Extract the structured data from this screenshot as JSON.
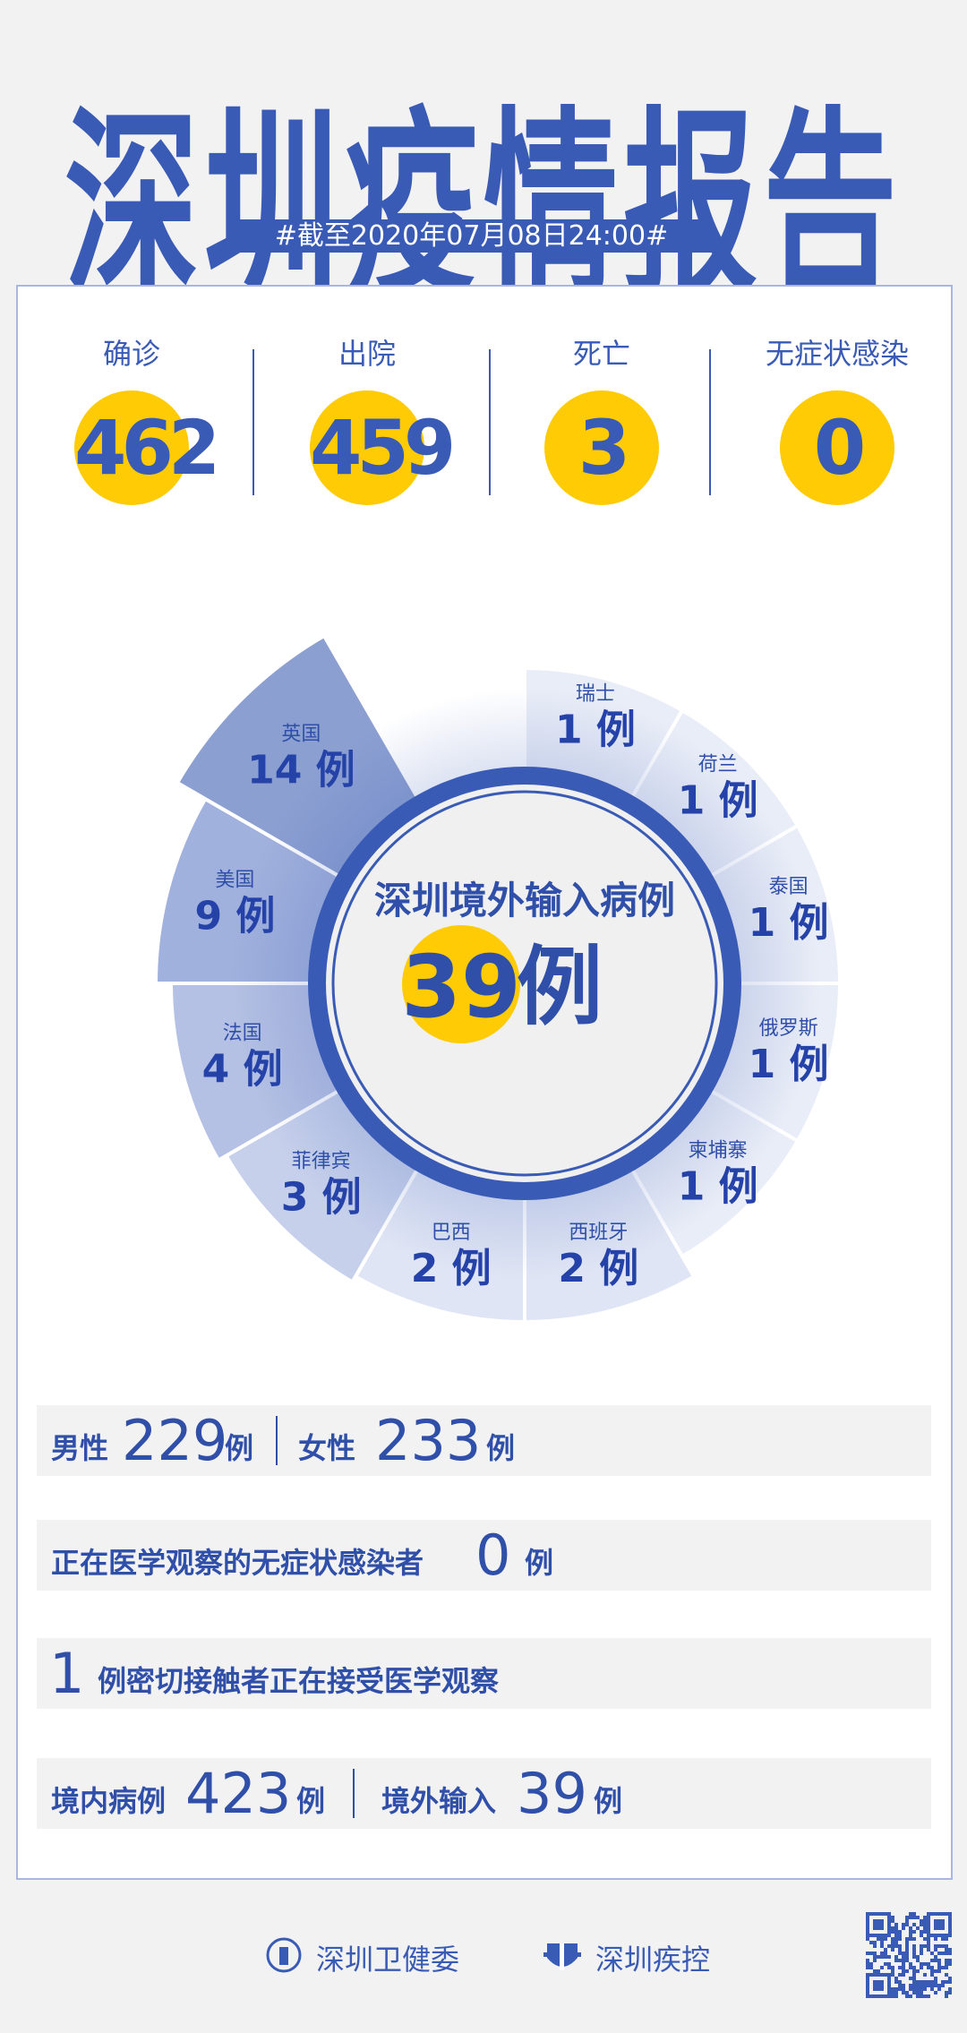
{
  "header": {
    "title": "深圳疫情报告",
    "date": "#截至2020年07月08日24:00#"
  },
  "stats": [
    {
      "label": "确诊",
      "value": "462"
    },
    {
      "label": "出院",
      "value": "459"
    },
    {
      "label": "死亡",
      "value": "3"
    },
    {
      "label": "无症状感染",
      "value": "0"
    }
  ],
  "imported": {
    "title": "深圳境外输入病例",
    "total": "39",
    "unit": "例",
    "countries": [
      {
        "name": "瑞士",
        "value": 1,
        "color": "#e9edf7"
      },
      {
        "name": "荷兰",
        "value": 1,
        "color": "#e9edf7"
      },
      {
        "name": "泰国",
        "value": 1,
        "color": "#e9edf7"
      },
      {
        "name": "俄罗斯",
        "value": 1,
        "color": "#e9edf7"
      },
      {
        "name": "柬埔寨",
        "value": 1,
        "color": "#e9edf7"
      },
      {
        "name": "西班牙",
        "value": 2,
        "color": "#dfe5f4"
      },
      {
        "name": "巴西",
        "value": 2,
        "color": "#dfe5f4"
      },
      {
        "name": "菲律宾",
        "value": 3,
        "color": "#c6d0eb"
      },
      {
        "name": "法国",
        "value": 4,
        "color": "#b5c1e4"
      },
      {
        "name": "美国",
        "value": 9,
        "color": "#a1b1dd"
      },
      {
        "name": "英国",
        "value": 14,
        "color": "#8b9fd1"
      }
    ]
  },
  "rows": {
    "gender": {
      "male_label": "男性",
      "male": "229",
      "female_label": "女性",
      "female": "233",
      "unit": "例"
    },
    "asymptomatic": {
      "label": "正在医学观察的无症状感染者",
      "value": "0",
      "unit": "例"
    },
    "contacts": {
      "value": "1",
      "label": "例密切接触者正在接受医学观察"
    },
    "origin": {
      "local_label": "境内病例",
      "local": "423",
      "imported_label": "境外输入",
      "imported": "39",
      "unit": "例"
    }
  },
  "footer": {
    "org1": "深圳卫健委",
    "org2": "深圳疾控"
  },
  "colors": {
    "primary": "#3a5bb5",
    "highlight": "#ffcb05",
    "background": "#f2f2f2"
  }
}
